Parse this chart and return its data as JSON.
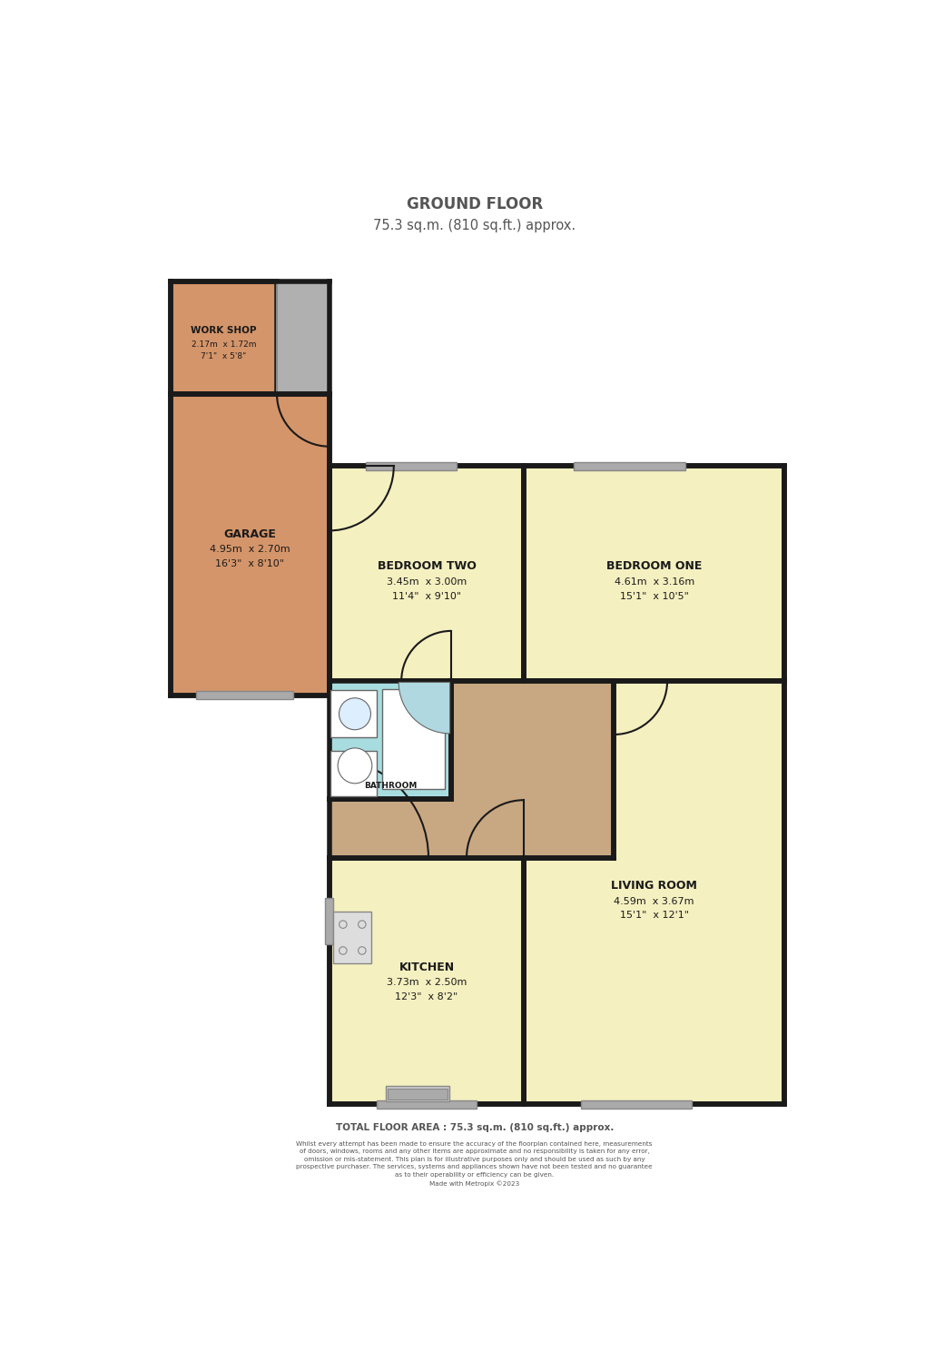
{
  "title_line1": "GROUND FLOOR",
  "title_line2": "75.3 sq.m. (810 sq.ft.) approx.",
  "footer_total": "TOTAL FLOOR AREA : 75.3 sq.m. (810 sq.ft.) approx.",
  "footer_disclaimer": "Whilst every attempt has been made to ensure the accuracy of the floorplan contained here, measurements\nof doors, windows, rooms and any other items are approximate and no responsibility is taken for any error,\nomission or mis-statement. This plan is for illustrative purposes only and should be used as such by any\nprospective purchaser. The services, systems and appliances shown have not been tested and no guarantee\nas to their operability or efficiency can be given.\nMade with Metropix ©2023",
  "bg_color": "#ffffff",
  "wall_color": "#1a1a1a",
  "wall_lw": 4.0,
  "room_colors": {
    "garage": "#d4956a",
    "workshop": "#d4956a",
    "bedroom_one": "#f5f0c0",
    "bedroom_two": "#f5f0c0",
    "living_room": "#f5f0c0",
    "kitchen": "#f5f0c0",
    "hallway": "#c8a882",
    "bathroom": "#a8dde0"
  },
  "text_color": "#1a1a1a",
  "title_color": "#555555",
  "window_color": "#aaaaaa",
  "door_color": "#1a1a1a"
}
